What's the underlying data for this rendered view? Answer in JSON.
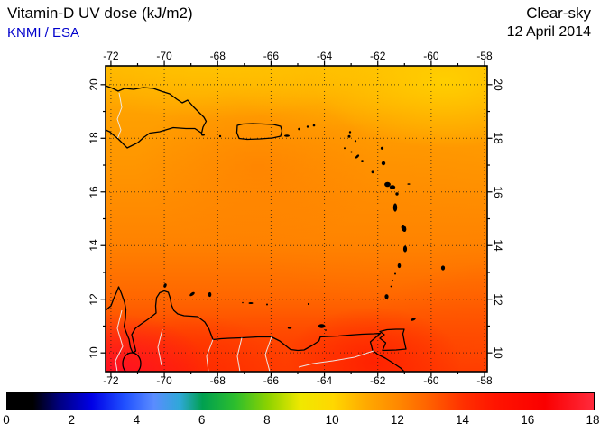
{
  "header": {
    "title": "Vitamin-D UV dose (kJ/m2)",
    "credit": "KNMI / ESA",
    "condition": "Clear-sky",
    "date": "12 April 2014"
  },
  "axes": {
    "lon_labels": [
      "-72",
      "-70",
      "-68",
      "-66",
      "-64",
      "-62",
      "-60",
      "-58"
    ],
    "lon_values": [
      -72,
      -70,
      -68,
      -66,
      -64,
      -62,
      -60,
      -58
    ],
    "lat_labels": [
      "20",
      "18",
      "16",
      "14",
      "12",
      "10"
    ],
    "lat_values": [
      20,
      18,
      16,
      14,
      12,
      10
    ]
  },
  "colorbar": {
    "tick_labels": [
      "0",
      "2",
      "4",
      "6",
      "8",
      "10",
      "12",
      "14",
      "16",
      "18"
    ],
    "tick_values": [
      0,
      2,
      4,
      6,
      8,
      10,
      12,
      14,
      16,
      18
    ],
    "min": 0,
    "max": 18,
    "unit": "kJ/m2",
    "stops": [
      {
        "v": 0,
        "c": "#000000"
      },
      {
        "v": 0.8,
        "c": "#000000"
      },
      {
        "v": 1.6,
        "c": "#000080"
      },
      {
        "v": 2.6,
        "c": "#0000e6"
      },
      {
        "v": 3.6,
        "c": "#2050ff"
      },
      {
        "v": 4.5,
        "c": "#5a8cff"
      },
      {
        "v": 5.3,
        "c": "#2fa8d8"
      },
      {
        "v": 6.0,
        "c": "#00a050"
      },
      {
        "v": 7.0,
        "c": "#2dbe2d"
      },
      {
        "v": 8.0,
        "c": "#8cd200"
      },
      {
        "v": 9.0,
        "c": "#f0e800"
      },
      {
        "v": 10.0,
        "c": "#ffd700"
      },
      {
        "v": 11.0,
        "c": "#ffaa00"
      },
      {
        "v": 12.0,
        "c": "#ff8800"
      },
      {
        "v": 13.0,
        "c": "#ff5f00"
      },
      {
        "v": 14.0,
        "c": "#ff3000"
      },
      {
        "v": 15.0,
        "c": "#ff1400"
      },
      {
        "v": 16.5,
        "c": "#fa0000"
      },
      {
        "v": 18,
        "c": "#ff2a3c"
      }
    ]
  },
  "chart_data": {
    "type": "heatmap",
    "title": "Vitamin-D UV dose (kJ/m2)",
    "subtitle": "Clear-sky, 12 April 2014",
    "source": "KNMI / ESA",
    "units": "kJ/m2",
    "region": {
      "lon_range": [
        -72.2,
        -57.9
      ],
      "lat_range": [
        9.3,
        20.7
      ]
    },
    "grid": true,
    "colorbar_range": [
      0,
      18
    ],
    "legend_position": "bottom",
    "lons": [
      -72,
      -70,
      -68,
      -66,
      -64,
      -62,
      -60,
      -58
    ],
    "lats": [
      20,
      18,
      16,
      14,
      12,
      10
    ],
    "values_estimated": true,
    "values_by_lat": [
      [
        11.0,
        11.0,
        10.8,
        10.8,
        10.8,
        11.0,
        10.6,
        10.5
      ],
      [
        11.5,
        11.8,
        12.0,
        12.0,
        12.0,
        11.8,
        11.5,
        11.2
      ],
      [
        12.0,
        12.2,
        12.4,
        12.3,
        12.3,
        12.4,
        12.1,
        12.0
      ],
      [
        12.6,
        12.6,
        12.6,
        12.7,
        12.9,
        13.0,
        12.6,
        12.4
      ],
      [
        13.6,
        13.2,
        13.1,
        13.1,
        13.3,
        13.6,
        13.6,
        13.1
      ],
      [
        14.6,
        14.2,
        13.8,
        13.7,
        13.7,
        14.2,
        14.4,
        13.9
      ]
    ]
  },
  "colors": {
    "credit_text": "#0000cc",
    "title_text": "#000000",
    "background": "#ffffff"
  }
}
